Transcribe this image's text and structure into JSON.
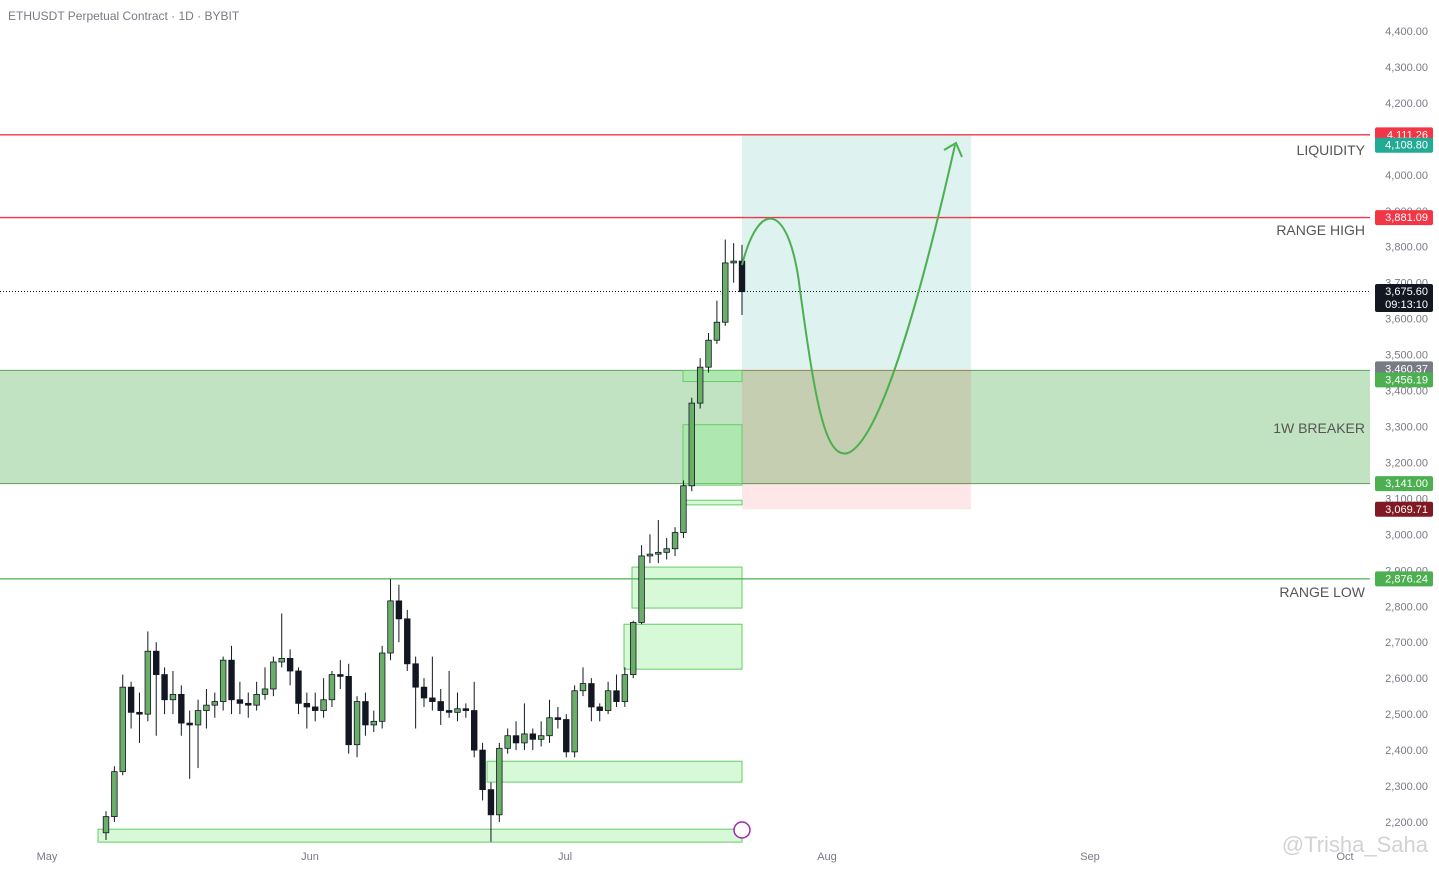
{
  "chart_data": {
    "type": "candlestick",
    "title": "ETHUSDT Perpetual Contract · 1D · BYBIT",
    "watermark": "@Trisha_Saha",
    "categories": [
      null,
      null,
      null,
      null,
      null,
      null,
      null,
      null,
      null,
      null,
      null,
      null,
      null,
      null,
      null,
      null,
      null,
      null,
      null,
      null,
      null,
      null,
      null,
      null,
      null,
      null,
      null,
      null,
      null,
      null,
      null,
      null,
      null,
      null,
      null,
      null,
      null,
      null,
      null,
      null,
      null,
      null,
      null,
      null,
      null,
      null,
      null,
      null,
      null,
      null,
      null,
      null,
      null,
      null,
      null,
      null,
      null,
      null,
      null,
      null,
      null,
      null,
      null,
      null,
      null,
      null,
      null,
      null,
      null,
      null,
      null,
      null,
      null,
      null,
      null,
      null,
      null
    ],
    "x_axis_labels": [
      "May",
      "Jun",
      "Jul",
      "Aug",
      "Sep",
      "Oct"
    ],
    "open": [
      2170,
      2215,
      2340,
      2575,
      2505,
      2500,
      2675,
      2610,
      2540,
      2555,
      2475,
      2470,
      2510,
      2525,
      2535,
      2650,
      2540,
      2530,
      2525,
      2555,
      2570,
      2645,
      2655,
      2620,
      2530,
      2520,
      2510,
      2540,
      2610,
      2605,
      2415,
      2535,
      2470,
      2480,
      2670,
      2815,
      2765,
      2640,
      2575,
      2545,
      2535,
      2510,
      2505,
      2515,
      2510,
      2400,
      2290,
      2220,
      2405,
      2440,
      2420,
      2445,
      2430,
      2440,
      2490,
      2485,
      2395,
      2565,
      2585,
      2520,
      2510,
      2565,
      2535,
      2610,
      2755,
      2940,
      2945,
      2950,
      2960,
      3005,
      3135,
      3365,
      3465,
      3540,
      3590,
      3755,
      3760
    ],
    "high": [
      2230,
      2355,
      2610,
      2590,
      2560,
      2730,
      2700,
      2630,
      2620,
      2580,
      2510,
      2540,
      2570,
      2560,
      2660,
      2690,
      2590,
      2560,
      2590,
      2630,
      2660,
      2780,
      2680,
      2630,
      2560,
      2560,
      2600,
      2620,
      2650,
      2640,
      2550,
      2560,
      2510,
      2690,
      2875,
      2860,
      2790,
      2660,
      2600,
      2660,
      2570,
      2620,
      2560,
      2530,
      2590,
      2420,
      2310,
      2420,
      2460,
      2480,
      2530,
      2460,
      2480,
      2540,
      2520,
      2500,
      2580,
      2630,
      2600,
      2530,
      2590,
      2610,
      2630,
      2760,
      2970,
      3000,
      3040,
      2990,
      3020,
      3150,
      3380,
      3490,
      3560,
      3650,
      3820,
      3810,
      3805
    ],
    "low": [
      2150,
      2200,
      2330,
      2460,
      2420,
      2480,
      2440,
      2500,
      2500,
      2440,
      2320,
      2350,
      2460,
      2490,
      2510,
      2500,
      2500,
      2490,
      2510,
      2540,
      2550,
      2630,
      2580,
      2500,
      2460,
      2480,
      2490,
      2520,
      2570,
      2390,
      2380,
      2440,
      2450,
      2460,
      2650,
      2700,
      2620,
      2460,
      2520,
      2510,
      2470,
      2490,
      2480,
      2490,
      2380,
      2260,
      2145,
      2200,
      2390,
      2400,
      2400,
      2400,
      2410,
      2420,
      2460,
      2380,
      2380,
      2550,
      2480,
      2480,
      2500,
      2520,
      2520,
      2600,
      2750,
      2920,
      2920,
      2930,
      2940,
      2990,
      3120,
      3350,
      3450,
      3530,
      3580,
      3700,
      3610
    ],
    "close": [
      2215,
      2340,
      2575,
      2505,
      2500,
      2675,
      2610,
      2540,
      2555,
      2475,
      2470,
      2510,
      2525,
      2535,
      2650,
      2540,
      2530,
      2525,
      2555,
      2570,
      2645,
      2655,
      2620,
      2530,
      2520,
      2510,
      2540,
      2610,
      2605,
      2415,
      2535,
      2470,
      2480,
      2670,
      2815,
      2765,
      2640,
      2575,
      2545,
      2535,
      2510,
      2505,
      2515,
      2510,
      2400,
      2290,
      2220,
      2405,
      2440,
      2420,
      2445,
      2430,
      2440,
      2490,
      2485,
      2395,
      2565,
      2585,
      2520,
      2510,
      2565,
      2535,
      2610,
      2755,
      2940,
      2945,
      2950,
      2960,
      3005,
      3135,
      3365,
      3465,
      3540,
      3590,
      3755,
      3760,
      3675
    ],
    "up_color": "#6aae6a",
    "down_color": "#131722",
    "ylim": [
      2165,
      4508
    ],
    "yticks": [
      {
        "value": 2200,
        "label": "2,200.00"
      },
      {
        "value": 2300,
        "label": "2,300.00"
      },
      {
        "value": 2400,
        "label": "2,400.00"
      },
      {
        "value": 2500,
        "label": "2,500.00"
      },
      {
        "value": 2600,
        "label": "2,600.00"
      },
      {
        "value": 2700,
        "label": "2,700.00"
      },
      {
        "value": 2800,
        "label": "2,800.00"
      },
      {
        "value": 2900,
        "label": "2,900.00"
      },
      {
        "value": 3000,
        "label": "3,000.00"
      },
      {
        "value": 3100,
        "label": "3,100.00"
      },
      {
        "value": 3200,
        "label": "3,200.00"
      },
      {
        "value": 3300,
        "label": "3,300.00"
      },
      {
        "value": 3400,
        "label": "3,400.00"
      },
      {
        "value": 3500,
        "label": "3,500.00"
      },
      {
        "value": 3600,
        "label": "3,600.00"
      },
      {
        "value": 3700,
        "label": "3,700.00"
      },
      {
        "value": 3800,
        "label": "3,800.00"
      },
      {
        "value": 3900,
        "label": "3,900.00"
      },
      {
        "value": 4000,
        "label": "4,000.00"
      },
      {
        "value": 4100,
        "label": "4,100.00"
      },
      {
        "value": 4200,
        "label": "4,200.00"
      },
      {
        "value": 4300,
        "label": "4,300.00"
      },
      {
        "value": 4400,
        "label": "4,400.00"
      }
    ],
    "levels": [
      {
        "value": 4111.26,
        "label": "4,111.26",
        "color": "#f23645",
        "role": "line"
      },
      {
        "value": 4108.8,
        "label": "4,108.80",
        "color": "#22ab94",
        "role": "target"
      },
      {
        "value": 3881.09,
        "label": "3,881.09",
        "color": "#f23645",
        "role": "line"
      },
      {
        "value": 3675.6,
        "label": "3,675.60",
        "color": "#131722",
        "role": "last",
        "countdown": "09:13:10"
      },
      {
        "value": 3460.37,
        "label": "3,460.37",
        "color": "#787b86",
        "role": "entry"
      },
      {
        "value": 3456.19,
        "label": "3,456.19",
        "color": "#4caf50",
        "role": "zone-top"
      },
      {
        "value": 3141,
        "label": "3,141.00",
        "color": "#4caf50",
        "role": "zone-bottom"
      },
      {
        "value": 3069.71,
        "label": "3,069.71",
        "color": "#801922",
        "role": "stop"
      },
      {
        "value": 2876.24,
        "label": "2,876.24",
        "color": "#4caf50",
        "role": "line"
      }
    ],
    "zones": [
      {
        "low": 3425,
        "high": 3456
      },
      {
        "low": 3137,
        "high": 3305
      },
      {
        "low": 3082,
        "high": 3095
      },
      {
        "low": 2795,
        "high": 2909
      },
      {
        "low": 2625,
        "high": 2750
      },
      {
        "low": 2311,
        "high": 2369
      },
      {
        "low": 2144,
        "high": 2180
      }
    ],
    "annotations": [
      "LIQUIDITY",
      "RANGE HIGH",
      "1W BREAKER",
      "RANGE LOW"
    ]
  }
}
